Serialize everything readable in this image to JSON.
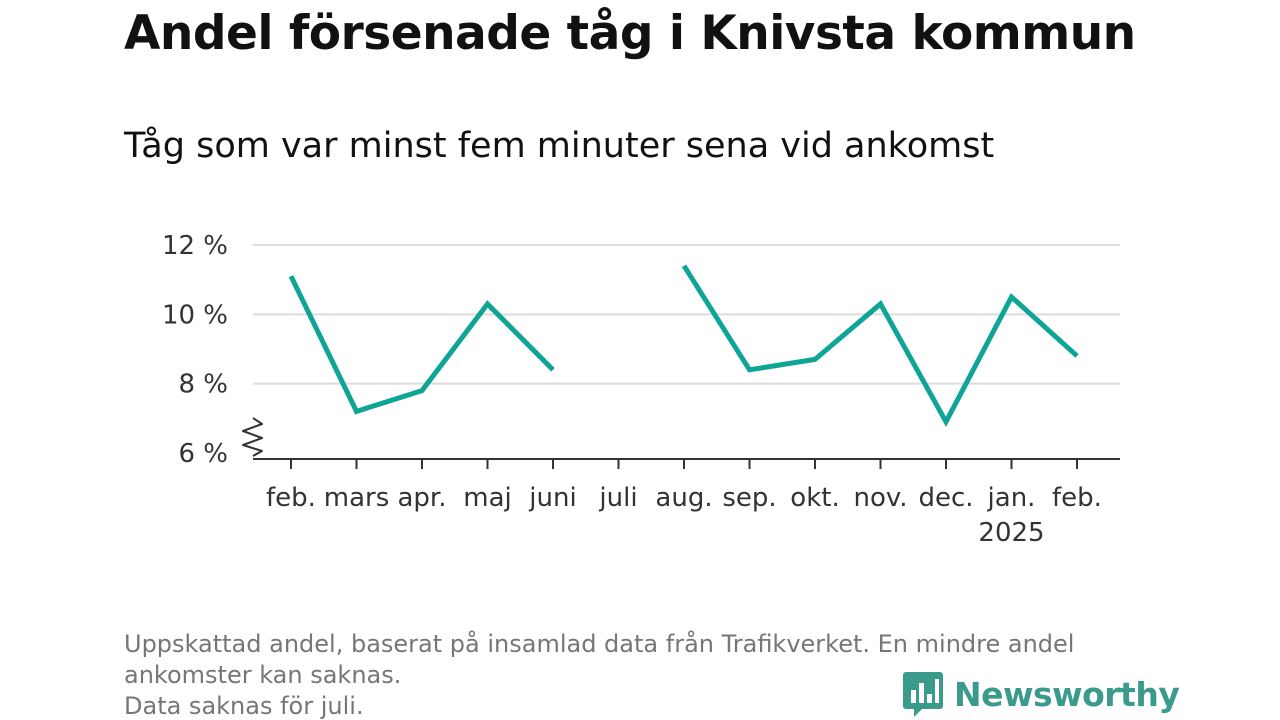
{
  "title": "Andel försenade tåg i Knivsta kommun",
  "subtitle": "Tåg som var minst fem minuter sena vid ankomst",
  "footnotes": [
    "Uppskattad andel, baserat på insamlad data från Trafikverket. En mindre andel",
    "ankomster kan saknas.",
    "Data saknas för juli."
  ],
  "brand": {
    "name": "Newsworthy",
    "icon": "newsworthy-logo-icon",
    "color": "#3a9a8c"
  },
  "chart_data": {
    "type": "line",
    "categories": [
      "feb.",
      "mars",
      "apr.",
      "maj",
      "juni",
      "juli",
      "aug.",
      "sep.",
      "okt.",
      "nov.",
      "dec.",
      "jan.",
      "feb."
    ],
    "year_label": {
      "category_index": 11,
      "text": "2025"
    },
    "series": [
      {
        "values": [
          11.1,
          7.2,
          7.8,
          10.3,
          8.4,
          null,
          11.4,
          8.4,
          8.7,
          10.3,
          6.9,
          10.5,
          8.8
        ],
        "color": "#0ea597"
      }
    ],
    "y_ticks": [
      6,
      8,
      10,
      12
    ],
    "y_tick_labels": [
      "6 %",
      "8 %",
      "10 %",
      "12 %"
    ],
    "ylim": [
      6,
      12
    ],
    "axis_break": true,
    "grid": true,
    "legend": false,
    "xlabel": "",
    "ylabel": ""
  }
}
